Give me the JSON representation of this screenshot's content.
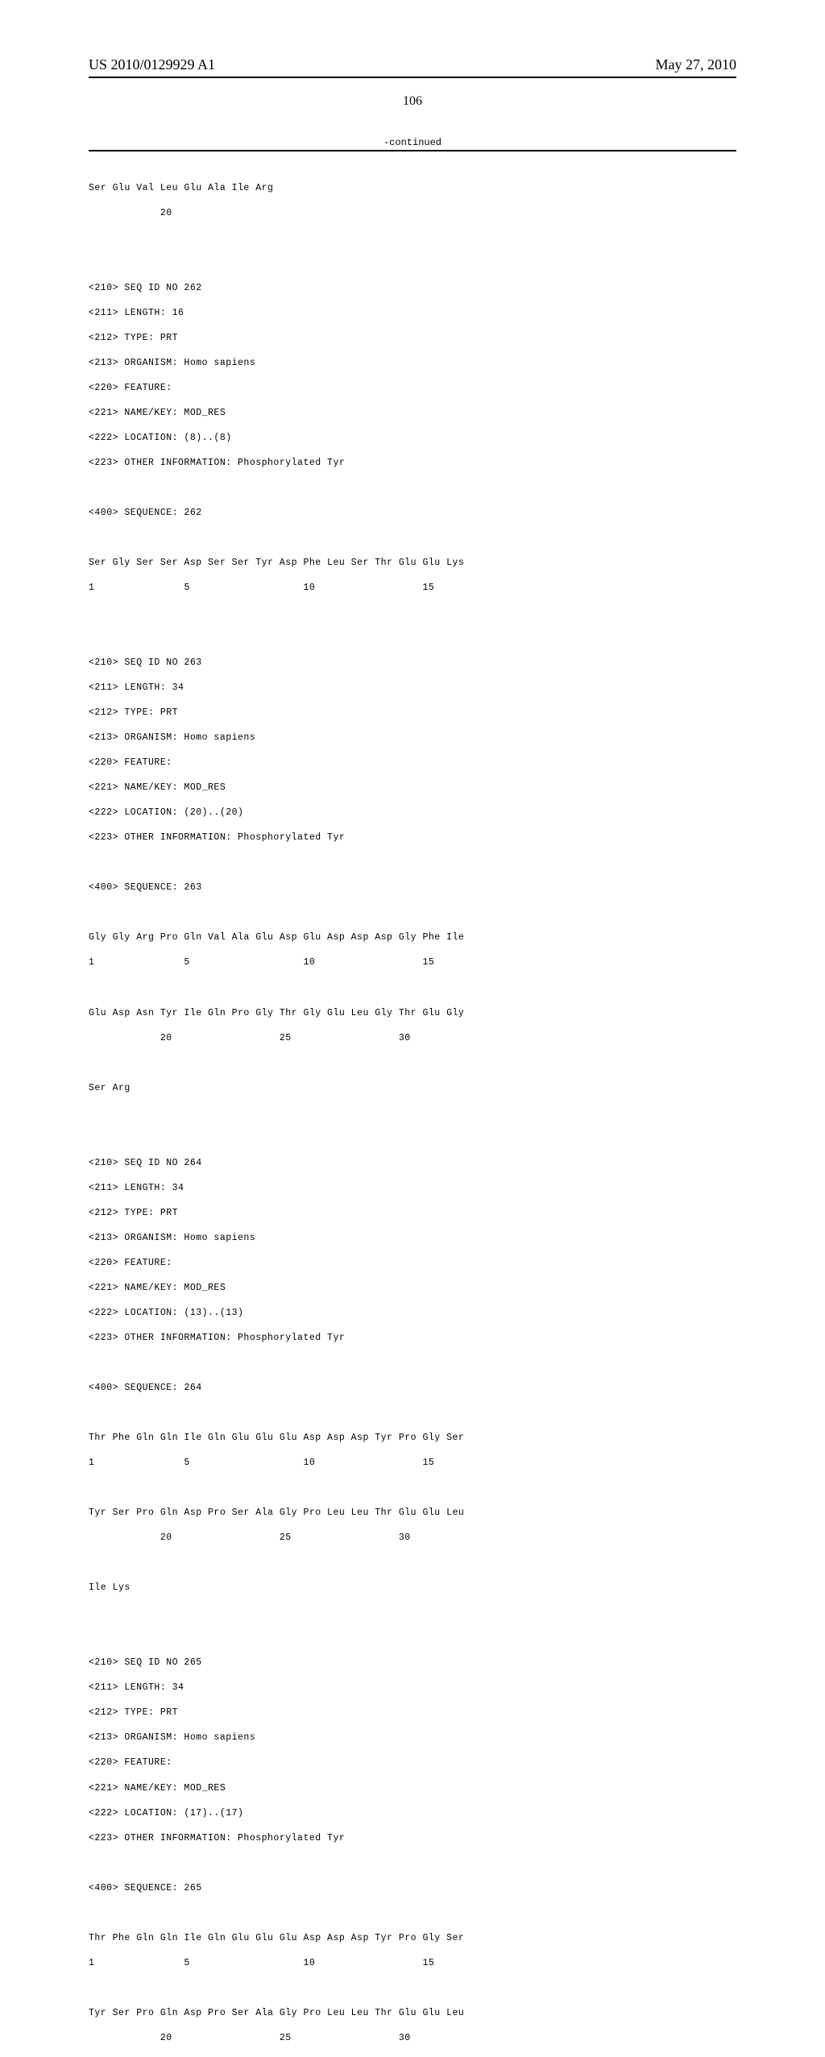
{
  "header": {
    "pub_number": "US 2010/0129929 A1",
    "pub_date": "May 27, 2010",
    "page_number": "106",
    "continued": "-continued"
  },
  "seq_fragment": {
    "line1": "Ser Glu Val Leu Glu Ala Ile Arg",
    "line2": "            20"
  },
  "seq262": {
    "h1": "<210> SEQ ID NO 262",
    "h2": "<211> LENGTH: 16",
    "h3": "<212> TYPE: PRT",
    "h4": "<213> ORGANISM: Homo sapiens",
    "h5": "<220> FEATURE:",
    "h6": "<221> NAME/KEY: MOD_RES",
    "h7": "<222> LOCATION: (8)..(8)",
    "h8": "<223> OTHER INFORMATION: Phosphorylated Tyr",
    "h9": "<400> SEQUENCE: 262",
    "s1": "Ser Gly Ser Ser Asp Ser Ser Tyr Asp Phe Leu Ser Thr Glu Glu Lys",
    "s2": "1               5                   10                  15"
  },
  "seq263": {
    "h1": "<210> SEQ ID NO 263",
    "h2": "<211> LENGTH: 34",
    "h3": "<212> TYPE: PRT",
    "h4": "<213> ORGANISM: Homo sapiens",
    "h5": "<220> FEATURE:",
    "h6": "<221> NAME/KEY: MOD_RES",
    "h7": "<222> LOCATION: (20)..(20)",
    "h8": "<223> OTHER INFORMATION: Phosphorylated Tyr",
    "h9": "<400> SEQUENCE: 263",
    "s1": "Gly Gly Arg Pro Gln Val Ala Glu Asp Glu Asp Asp Asp Gly Phe Ile",
    "s2": "1               5                   10                  15",
    "s3": "Glu Asp Asn Tyr Ile Gln Pro Gly Thr Gly Glu Leu Gly Thr Glu Gly",
    "s4": "            20                  25                  30",
    "s5": "Ser Arg"
  },
  "seq264": {
    "h1": "<210> SEQ ID NO 264",
    "h2": "<211> LENGTH: 34",
    "h3": "<212> TYPE: PRT",
    "h4": "<213> ORGANISM: Homo sapiens",
    "h5": "<220> FEATURE:",
    "h6": "<221> NAME/KEY: MOD_RES",
    "h7": "<222> LOCATION: (13)..(13)",
    "h8": "<223> OTHER INFORMATION: Phosphorylated Tyr",
    "h9": "<400> SEQUENCE: 264",
    "s1": "Thr Phe Gln Gln Ile Gln Glu Glu Glu Asp Asp Asp Tyr Pro Gly Ser",
    "s2": "1               5                   10                  15",
    "s3": "Tyr Ser Pro Gln Asp Pro Ser Ala Gly Pro Leu Leu Thr Glu Glu Leu",
    "s4": "            20                  25                  30",
    "s5": "Ile Lys"
  },
  "seq265": {
    "h1": "<210> SEQ ID NO 265",
    "h2": "<211> LENGTH: 34",
    "h3": "<212> TYPE: PRT",
    "h4": "<213> ORGANISM: Homo sapiens",
    "h5": "<220> FEATURE:",
    "h6": "<221> NAME/KEY: MOD_RES",
    "h7": "<222> LOCATION: (17)..(17)",
    "h8": "<223> OTHER INFORMATION: Phosphorylated Tyr",
    "h9": "<400> SEQUENCE: 265",
    "s1": "Thr Phe Gln Gln Ile Gln Glu Glu Glu Asp Asp Asp Tyr Pro Gly Ser",
    "s2": "1               5                   10                  15",
    "s3": "Tyr Ser Pro Gln Asp Pro Ser Ala Gly Pro Leu Leu Thr Glu Glu Leu",
    "s4": "            20                  25                  30"
  }
}
